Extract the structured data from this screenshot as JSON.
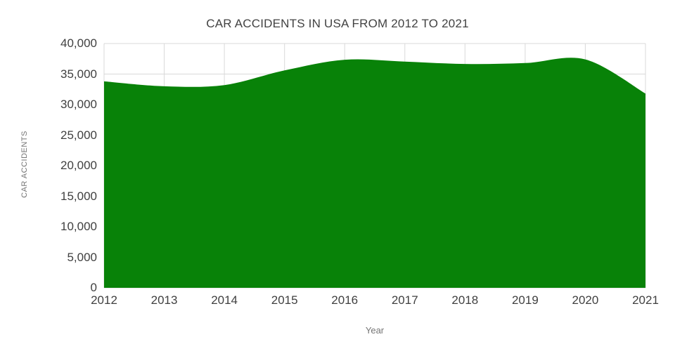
{
  "chart": {
    "title": "CAR ACCIDENTS IN USA FROM 2012 TO 2021",
    "y_axis_title": "CAR ACCIDENTS",
    "x_axis_title": "Year"
  },
  "chart_data": {
    "type": "area",
    "title": "CAR ACCIDENTS IN USA FROM 2012 TO 2021",
    "xlabel": "Year",
    "ylabel": "CAR ACCIDENTS",
    "x": [
      2012,
      2013,
      2014,
      2015,
      2016,
      2017,
      2018,
      2019,
      2020,
      2021
    ],
    "x_tick_labels": [
      "2012",
      "2013",
      "2014",
      "2015",
      "2016",
      "2017",
      "2018",
      "2019",
      "2020",
      "2021"
    ],
    "values": [
      33800,
      33000,
      33200,
      35600,
      37350,
      37050,
      36650,
      36800,
      37400,
      31800
    ],
    "ylim": [
      0,
      40000
    ],
    "y_ticks": [
      0,
      5000,
      10000,
      15000,
      20000,
      25000,
      30000,
      35000,
      40000
    ],
    "y_tick_labels": [
      "0",
      "5,000",
      "10,000",
      "15,000",
      "20,000",
      "25,000",
      "30,000",
      "35,000",
      "40,000"
    ],
    "grid": true,
    "legend": false,
    "smooth": true,
    "area_color": "#088208",
    "gridline_color": "#d9d9d9"
  }
}
